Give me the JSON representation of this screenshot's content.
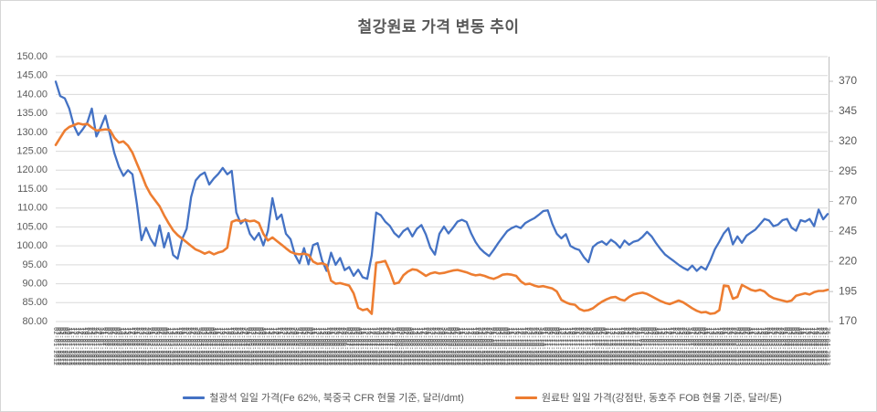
{
  "title": "철강원료 가격 변동 추이",
  "colors": {
    "iron_ore_line": "#4472C4",
    "coking_coal_line": "#ED7D31",
    "gridline": "#D9D9D9",
    "axis_line": "#BFBFBF",
    "axis_text": "#595959",
    "date_band_text": "#404040",
    "title_text": "#595959",
    "background": "#FFFFFF",
    "frame_border": "#D6D6D6"
  },
  "chart_data": {
    "type": "line",
    "title": "철강원료 가격 변동 추이",
    "grid": true,
    "legend_position": "bottom",
    "y_left": {
      "min": 80,
      "max": 150,
      "tick_step": 5,
      "decimals": 2,
      "tick_labels": [
        "150.00",
        "145.00",
        "140.00",
        "135.00",
        "130.00",
        "125.00",
        "120.00",
        "115.00",
        "110.00",
        "105.00",
        "100.00",
        "95.00",
        "90.00",
        "85.00",
        "80.00"
      ]
    },
    "y_right": {
      "min": 170,
      "max": 370,
      "tick_step": 25,
      "tick_labels": [
        "370",
        "345",
        "320",
        "295",
        "270",
        "245",
        "220",
        "195",
        "170"
      ]
    },
    "x_axis": {
      "type": "date",
      "start": "2012-01-02",
      "periods": 345,
      "frequency": "weekdays",
      "label_format": "DD-MM-YYYY",
      "labels_rotated_degrees": 90,
      "labels_illegible_in_source": true,
      "note": "x axis is a dense band of daily date labels rotated vertically; individual dates are not legible in the source screenshot"
    },
    "series": [
      {
        "name": "철광석 일일 가격(Fe 62%, 북중국 CFR 현물 기준, 달러/dmt)",
        "axis": "left",
        "color": "#4472C4",
        "values": [
          143.4,
          139.6,
          139.0,
          136.3,
          131.8,
          129.3,
          130.8,
          132.6,
          136.3,
          128.9,
          131.4,
          134.4,
          129.5,
          124.5,
          120.9,
          118.5,
          120.0,
          118.9,
          111.0,
          101.5,
          104.8,
          101.9,
          100.0,
          105.4,
          99.6,
          103.4,
          97.6,
          96.6,
          101.8,
          104.5,
          112.9,
          117.3,
          118.7,
          119.4,
          116.2,
          117.8,
          119.0,
          120.6,
          118.9,
          119.8,
          108.8,
          105.9,
          107.0,
          103.2,
          101.6,
          103.4,
          100.1,
          104.0,
          112.6,
          107.0,
          108.3,
          103.2,
          101.8,
          97.6,
          95.4,
          99.4,
          95.1,
          100.2,
          100.7,
          96.2,
          93.4,
          98.2,
          95.0,
          96.8,
          93.6,
          94.4,
          92.1,
          93.7,
          91.7,
          91.3,
          97.5,
          108.8,
          108.1,
          106.4,
          105.3,
          103.4,
          102.3,
          103.9,
          104.7,
          102.5,
          104.5,
          105.5,
          103.0,
          99.5,
          97.7,
          103.2,
          105.1,
          103.3,
          104.8,
          106.4,
          106.9,
          106.3,
          103.4,
          101.0,
          99.3,
          98.2,
          97.3,
          98.9,
          100.7,
          102.3,
          103.9,
          104.7,
          105.2,
          104.7,
          106.0,
          106.7,
          107.3,
          108.2,
          109.2,
          109.4,
          105.8,
          103.2,
          102.0,
          103.1,
          100.0,
          99.3,
          98.9,
          97.0,
          95.7,
          99.7,
          100.7,
          101.2,
          100.3,
          101.6,
          100.8,
          99.5,
          101.4,
          100.3,
          101.1,
          101.4,
          102.4,
          103.7,
          102.5,
          100.7,
          99.1,
          97.7,
          96.8,
          95.9,
          95.0,
          94.2,
          93.6,
          94.8,
          93.4,
          94.5,
          93.7,
          96.1,
          99.1,
          101.1,
          103.3,
          104.7,
          100.4,
          102.5,
          100.8,
          102.7,
          103.5,
          104.3,
          105.7,
          107.1,
          106.7,
          105.2,
          105.6,
          106.8,
          107.1,
          104.8,
          104.0,
          106.8,
          106.4,
          107.1,
          105.2,
          109.6,
          107.0,
          108.4
        ]
      },
      {
        "name": "원료탄 일일 가격(강점탄, 동호주 FOB 현물 기준, 달러/톤)",
        "axis": "right",
        "color": "#ED7D31",
        "values": [
          317,
          323,
          329,
          332,
          333.5,
          335,
          334,
          334.5,
          331.5,
          329,
          329.5,
          330,
          329.5,
          323,
          319,
          320,
          316.5,
          310.5,
          301.5,
          292.5,
          283,
          276,
          271,
          266,
          258.5,
          252,
          246,
          242,
          239,
          236,
          233,
          230,
          228.5,
          226.5,
          228,
          226,
          227.5,
          228.5,
          231.5,
          253,
          254.5,
          253.5,
          254.5,
          253.5,
          254,
          252,
          243,
          237.5,
          240,
          237,
          234,
          231,
          228,
          226.5,
          226,
          226.5,
          225.5,
          220,
          218,
          218.5,
          217,
          204,
          201.5,
          202,
          201,
          200,
          193.5,
          181.5,
          179.5,
          180.5,
          176.5,
          219,
          219.5,
          220.5,
          212,
          201.5,
          202.5,
          208.5,
          211.5,
          213.5,
          213,
          210.5,
          208,
          210,
          211,
          210,
          210.5,
          211.5,
          212.5,
          213,
          212,
          211,
          209.5,
          208.5,
          209,
          208,
          206.5,
          205.5,
          207,
          209,
          209.5,
          209,
          208,
          203.5,
          201,
          201.5,
          200,
          199,
          199.5,
          198.5,
          197.5,
          195,
          188,
          186,
          184.5,
          184,
          180.5,
          179,
          179.5,
          181,
          184,
          186.5,
          188.5,
          190,
          190.5,
          188.5,
          187.5,
          190.5,
          192.5,
          193.5,
          194,
          193,
          191,
          189,
          187,
          185.5,
          184.5,
          186,
          187.5,
          186,
          183.5,
          181,
          179,
          177.5,
          178,
          176.5,
          177,
          179.5,
          200,
          199.5,
          189,
          190.5,
          200.5,
          198.5,
          196.5,
          195.5,
          196.5,
          195,
          191.5,
          189.5,
          188.5,
          187.5,
          186.5,
          187.5,
          191.5,
          192.5,
          193.5,
          192.5,
          194.5,
          195.5,
          195.5,
          196.5
        ]
      }
    ]
  },
  "legend": {
    "items": [
      {
        "label": "철광석 일일 가격(Fe 62%, 북중국 CFR 현물 기준, 달러/dmt)",
        "color": "#4472C4"
      },
      {
        "label": "원료탄 일일 가격(강점탄, 동호주 FOB 현물 기준, 달러/톤)",
        "color": "#ED7D31"
      }
    ]
  }
}
